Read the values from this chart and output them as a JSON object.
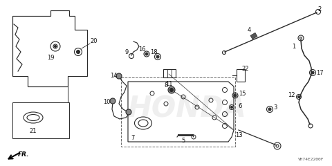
{
  "bg_color": "#ffffff",
  "watermark_text": "HONDA",
  "watermark_color": "#cccccc",
  "part_number_label": "VH74E2200F",
  "line_color": "#2a2a2a",
  "text_color": "#111111",
  "font_size": 6.0
}
